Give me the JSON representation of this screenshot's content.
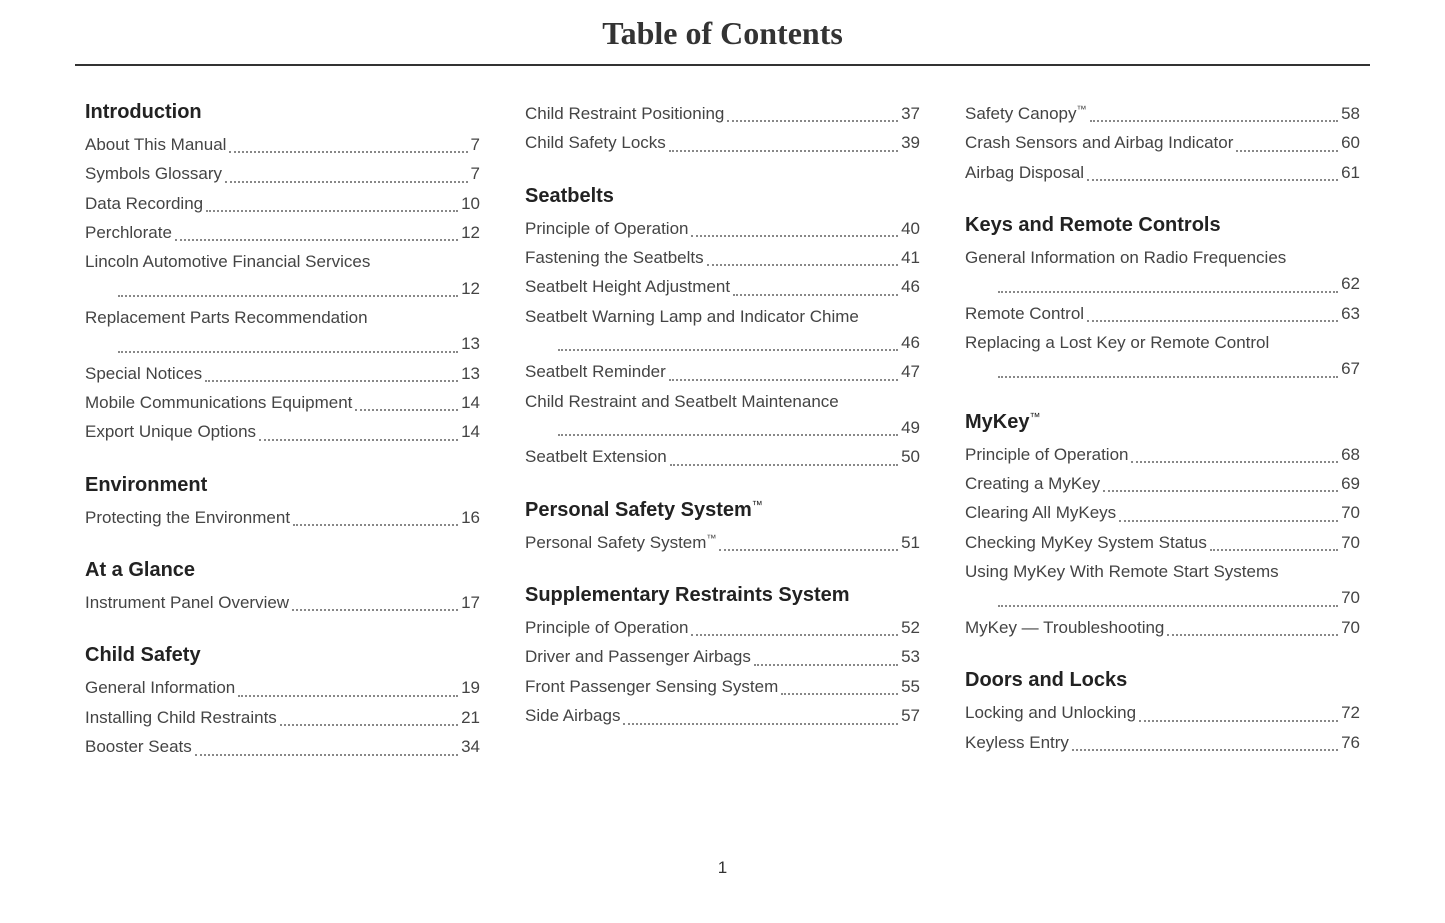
{
  "title": "Table of Contents",
  "page_number": "1",
  "colors": {
    "text": "#333333",
    "heading": "#222222",
    "body": "#444444",
    "dots": "#888888",
    "background": "#ffffff",
    "rule": "#333333"
  },
  "sections": [
    {
      "heading": "Introduction",
      "entries": [
        {
          "label": "About This Manual",
          "page": "7"
        },
        {
          "label": "Symbols Glossary",
          "page": "7"
        },
        {
          "label": "Data Recording",
          "page": "10"
        },
        {
          "label": "Perchlorate",
          "page": "12"
        },
        {
          "label": "Lincoln Automotive Financial Services",
          "page": "12",
          "wrap": true
        },
        {
          "label": "Replacement Parts Recommendation",
          "page": "13",
          "wrap": true
        },
        {
          "label": "Special Notices",
          "page": "13"
        },
        {
          "label": "Mobile Communications Equipment",
          "page": "14"
        },
        {
          "label": "Export Unique Options",
          "page": "14"
        }
      ]
    },
    {
      "heading": "Environment",
      "entries": [
        {
          "label": "Protecting the Environment",
          "page": "16"
        }
      ]
    },
    {
      "heading": "At a Glance",
      "entries": [
        {
          "label": "Instrument Panel Overview",
          "page": "17"
        }
      ]
    },
    {
      "heading": "Child Safety",
      "entries": [
        {
          "label": "General Information",
          "page": "19"
        },
        {
          "label": "Installing Child Restraints",
          "page": "21"
        },
        {
          "label": "Booster Seats",
          "page": "34"
        }
      ]
    },
    {
      "heading": "",
      "entries": [
        {
          "label": "Child Restraint Positioning",
          "page": "37"
        },
        {
          "label": "Child Safety Locks",
          "page": "39"
        }
      ]
    },
    {
      "heading": "Seatbelts",
      "entries": [
        {
          "label": "Principle of Operation",
          "page": "40"
        },
        {
          "label": "Fastening the Seatbelts",
          "page": "41"
        },
        {
          "label": "Seatbelt Height Adjustment",
          "page": "46"
        },
        {
          "label": "Seatbelt Warning Lamp and Indicator Chime",
          "page": "46",
          "wrap": true,
          "wrap_indent": "Chime"
        },
        {
          "label": "Seatbelt Reminder",
          "page": "47"
        },
        {
          "label": "Child Restraint and Seatbelt Maintenance",
          "page": "49",
          "wrap": true
        },
        {
          "label": "Seatbelt Extension",
          "page": "50"
        }
      ]
    },
    {
      "heading": "Personal Safety System",
      "heading_tm": true,
      "entries": [
        {
          "label": "Personal Safety System",
          "label_tm": true,
          "page": "51"
        }
      ]
    },
    {
      "heading": "Supplementary Restraints System",
      "entries": [
        {
          "label": "Principle of Operation",
          "page": "52"
        },
        {
          "label": "Driver and Passenger Airbags",
          "page": "53"
        },
        {
          "label": "Front Passenger Sensing System",
          "page": "55"
        },
        {
          "label": "Side Airbags",
          "page": "57"
        }
      ]
    },
    {
      "heading": "",
      "entries": [
        {
          "label": "Safety Canopy",
          "label_tm": true,
          "page": "58"
        },
        {
          "label": "Crash Sensors and Airbag Indicator",
          "page": "60"
        },
        {
          "label": "Airbag Disposal",
          "page": "61"
        }
      ]
    },
    {
      "heading": "Keys and Remote Controls",
      "entries": [
        {
          "label": "General Information on Radio Frequencies",
          "page": "62",
          "wrap": true
        },
        {
          "label": "Remote Control",
          "page": "63"
        },
        {
          "label": "Replacing a Lost Key or Remote Control",
          "page": "67",
          "wrap": true
        }
      ]
    },
    {
      "heading": "MyKey",
      "heading_tm": true,
      "entries": [
        {
          "label": "Principle of Operation",
          "page": "68"
        },
        {
          "label": "Creating a MyKey",
          "page": "69"
        },
        {
          "label": "Clearing All MyKeys",
          "page": "70"
        },
        {
          "label": "Checking MyKey System Status",
          "page": "70"
        },
        {
          "label": "Using MyKey With Remote Start Systems",
          "page": "70",
          "wrap": true
        },
        {
          "label": "MyKey — Troubleshooting",
          "page": "70"
        }
      ]
    },
    {
      "heading": "Doors and Locks",
      "entries": [
        {
          "label": "Locking and Unlocking",
          "page": "72"
        },
        {
          "label": "Keyless Entry",
          "page": "76"
        }
      ]
    }
  ],
  "column_breaks": [
    4,
    8
  ]
}
